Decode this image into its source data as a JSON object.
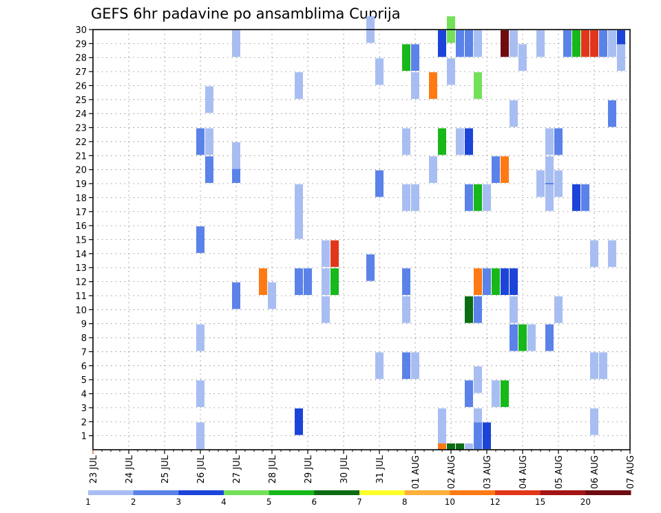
{
  "chart_data": {
    "type": "heatmap",
    "title": "GEFS 6hr padavine po ansamblima Cuprija",
    "xlabel": "",
    "ylabel": "",
    "grid": true,
    "x_ticks": [
      "23 JUL",
      "24 JUL",
      "25 JUL",
      "26 JUL",
      "27 JUL",
      "28 JUL",
      "29 JUL",
      "30 JUL",
      "31 JUL",
      "01 AUG",
      "02 AUG",
      "03 AUG",
      "04 AUG",
      "05 AUG",
      "06 AUG",
      "07 AUG"
    ],
    "y_ticks": [
      "1",
      "2",
      "3",
      "4",
      "5",
      "6",
      "7",
      "8",
      "9",
      "10",
      "11",
      "12",
      "13",
      "14",
      "15",
      "16",
      "17",
      "18",
      "19",
      "20",
      "21",
      "22",
      "23",
      "24",
      "25",
      "26",
      "27",
      "28",
      "29",
      "30"
    ],
    "xlim": [
      0,
      15
    ],
    "ylim": [
      0,
      30
    ],
    "colorbar": {
      "labels": [
        "1",
        "2",
        "3",
        "4",
        "5",
        "6",
        "7",
        "8",
        "10",
        "12",
        "15",
        "20"
      ],
      "colors": [
        "#a8bef2",
        "#5a82e8",
        "#1c44d8",
        "#74e05a",
        "#16b81a",
        "#0c6c14",
        "#ffff2a",
        "#ffb03a",
        "#ff7a12",
        "#e2361a",
        "#a41414",
        "#6e0c10"
      ]
    },
    "cells": [
      {
        "x": 3.0,
        "y": 1,
        "c": 0
      },
      {
        "x": 3.0,
        "y": 4,
        "c": 0
      },
      {
        "x": 3.0,
        "y": 8,
        "c": 0
      },
      {
        "x": 3.0,
        "y": 15,
        "c": 1
      },
      {
        "x": 3.0,
        "y": 22,
        "c": 1
      },
      {
        "x": 3.25,
        "y": 22,
        "c": 0
      },
      {
        "x": 3.25,
        "y": 20,
        "c": 1
      },
      {
        "x": 3.25,
        "y": 25,
        "c": 0
      },
      {
        "x": 4.0,
        "y": 11,
        "c": 1
      },
      {
        "x": 4.0,
        "y": 20,
        "c": 1
      },
      {
        "x": 4.0,
        "y": 21,
        "c": 0
      },
      {
        "x": 4.0,
        "y": 29,
        "c": 0
      },
      {
        "x": 4.75,
        "y": 12,
        "c": 8
      },
      {
        "x": 5.0,
        "y": 11,
        "c": 0
      },
      {
        "x": 5.75,
        "y": 2,
        "c": 2
      },
      {
        "x": 5.75,
        "y": 12,
        "c": 1
      },
      {
        "x": 6.0,
        "y": 12,
        "c": 1
      },
      {
        "x": 5.75,
        "y": 16,
        "c": 0
      },
      {
        "x": 5.75,
        "y": 17,
        "c": 0
      },
      {
        "x": 5.75,
        "y": 18,
        "c": 0
      },
      {
        "x": 5.75,
        "y": 26,
        "c": 0
      },
      {
        "x": 6.5,
        "y": 10,
        "c": 0
      },
      {
        "x": 6.5,
        "y": 12,
        "c": 0
      },
      {
        "x": 6.75,
        "y": 12,
        "c": 4
      },
      {
        "x": 6.5,
        "y": 14,
        "c": 0
      },
      {
        "x": 6.75,
        "y": 14,
        "c": 9
      },
      {
        "x": 7.75,
        "y": 13,
        "c": 1
      },
      {
        "x": 7.75,
        "y": 30,
        "c": 0
      },
      {
        "x": 8.0,
        "y": 6,
        "c": 0
      },
      {
        "x": 8.0,
        "y": 19,
        "c": 1
      },
      {
        "x": 8.0,
        "y": 27,
        "c": 0
      },
      {
        "x": 8.75,
        "y": 6,
        "c": 1
      },
      {
        "x": 9.0,
        "y": 6,
        "c": 0
      },
      {
        "x": 8.75,
        "y": 10,
        "c": 0
      },
      {
        "x": 8.75,
        "y": 12,
        "c": 1
      },
      {
        "x": 8.75,
        "y": 18,
        "c": 0
      },
      {
        "x": 9.0,
        "y": 18,
        "c": 0
      },
      {
        "x": 8.75,
        "y": 22,
        "c": 0
      },
      {
        "x": 9.0,
        "y": 26,
        "c": 0
      },
      {
        "x": 9.0,
        "y": 28,
        "c": 1
      },
      {
        "x": 8.75,
        "y": 28,
        "c": 4
      },
      {
        "x": 9.5,
        "y": 26,
        "c": 8
      },
      {
        "x": 9.5,
        "y": 20,
        "c": 0
      },
      {
        "x": 9.75,
        "y": 1,
        "c": 0
      },
      {
        "x": 9.75,
        "y": 2,
        "c": 0
      },
      {
        "x": 9.75,
        "y": 22,
        "c": 4
      },
      {
        "x": 9.75,
        "y": 29,
        "c": 2
      },
      {
        "x": 10.0,
        "y": 27,
        "c": 0
      },
      {
        "x": 10.0,
        "y": 30,
        "c": 3
      },
      {
        "x": 10.5,
        "y": 10,
        "c": 5
      },
      {
        "x": 10.5,
        "y": 4,
        "c": 1
      },
      {
        "x": 10.5,
        "y": 18,
        "c": 1
      },
      {
        "x": 10.5,
        "y": 22,
        "c": 2
      },
      {
        "x": 10.25,
        "y": 22,
        "c": 0
      },
      {
        "x": 10.25,
        "y": 29,
        "c": 1
      },
      {
        "x": 10.5,
        "y": 29,
        "c": 1
      },
      {
        "x": 10.75,
        "y": 29,
        "c": 0
      },
      {
        "x": 10.75,
        "y": 26,
        "c": 3
      },
      {
        "x": 10.75,
        "y": 18,
        "c": 4
      },
      {
        "x": 11.0,
        "y": 18,
        "c": 0
      },
      {
        "x": 10.75,
        "y": 12,
        "c": 8
      },
      {
        "x": 11.0,
        "y": 12,
        "c": 1
      },
      {
        "x": 11.25,
        "y": 12,
        "c": 4
      },
      {
        "x": 11.5,
        "y": 12,
        "c": 2
      },
      {
        "x": 11.75,
        "y": 12,
        "c": 2
      },
      {
        "x": 10.75,
        "y": 10,
        "c": 1
      },
      {
        "x": 10.75,
        "y": 5,
        "c": 0
      },
      {
        "x": 10.75,
        "y": 2,
        "c": 0
      },
      {
        "x": 10.75,
        "y": 1,
        "c": 1
      },
      {
        "x": 11.0,
        "y": 1,
        "c": 2
      },
      {
        "x": 11.25,
        "y": 4,
        "c": 0
      },
      {
        "x": 11.5,
        "y": 4,
        "c": 4
      },
      {
        "x": 11.25,
        "y": 20,
        "c": 1
      },
      {
        "x": 11.5,
        "y": 20,
        "c": 8
      },
      {
        "x": 11.5,
        "y": 29,
        "c": 11
      },
      {
        "x": 11.75,
        "y": 8,
        "c": 1
      },
      {
        "x": 12.0,
        "y": 8,
        "c": 4
      },
      {
        "x": 12.25,
        "y": 8,
        "c": 0
      },
      {
        "x": 11.75,
        "y": 10,
        "c": 0
      },
      {
        "x": 11.75,
        "y": 24,
        "c": 0
      },
      {
        "x": 11.75,
        "y": 29,
        "c": 0
      },
      {
        "x": 12.0,
        "y": 28,
        "c": 0
      },
      {
        "x": 12.5,
        "y": 29,
        "c": 0
      },
      {
        "x": 12.5,
        "y": 19,
        "c": 0
      },
      {
        "x": 12.75,
        "y": 19,
        "c": 1
      },
      {
        "x": 13.0,
        "y": 19,
        "c": 0
      },
      {
        "x": 12.75,
        "y": 8,
        "c": 1
      },
      {
        "x": 12.75,
        "y": 18,
        "c": 0
      },
      {
        "x": 12.75,
        "y": 20,
        "c": 0
      },
      {
        "x": 12.75,
        "y": 22,
        "c": 0
      },
      {
        "x": 13.0,
        "y": 22,
        "c": 1
      },
      {
        "x": 13.0,
        "y": 10,
        "c": 0
      },
      {
        "x": 13.5,
        "y": 18,
        "c": 2
      },
      {
        "x": 13.75,
        "y": 18,
        "c": 1
      },
      {
        "x": 13.25,
        "y": 29,
        "c": 1
      },
      {
        "x": 13.5,
        "y": 29,
        "c": 4
      },
      {
        "x": 13.75,
        "y": 29,
        "c": 9
      },
      {
        "x": 14.0,
        "y": 29,
        "c": 9
      },
      {
        "x": 14.25,
        "y": 29,
        "c": 1
      },
      {
        "x": 14.5,
        "y": 29,
        "c": 0
      },
      {
        "x": 14.75,
        "y": 29,
        "c": 2
      },
      {
        "x": 14.0,
        "y": 14,
        "c": 0
      },
      {
        "x": 14.5,
        "y": 14,
        "c": 0
      },
      {
        "x": 14.0,
        "y": 6,
        "c": 0
      },
      {
        "x": 14.25,
        "y": 6,
        "c": 0
      },
      {
        "x": 14.0,
        "y": 2,
        "c": 0
      },
      {
        "x": 14.5,
        "y": 24,
        "c": 1
      },
      {
        "x": 14.75,
        "y": 28,
        "c": 0
      }
    ],
    "bottom_strip": [
      {
        "x": 9.75,
        "c": 8
      },
      {
        "x": 10.0,
        "c": 5
      },
      {
        "x": 10.25,
        "c": 5
      },
      {
        "x": 10.5,
        "c": 0
      }
    ]
  }
}
